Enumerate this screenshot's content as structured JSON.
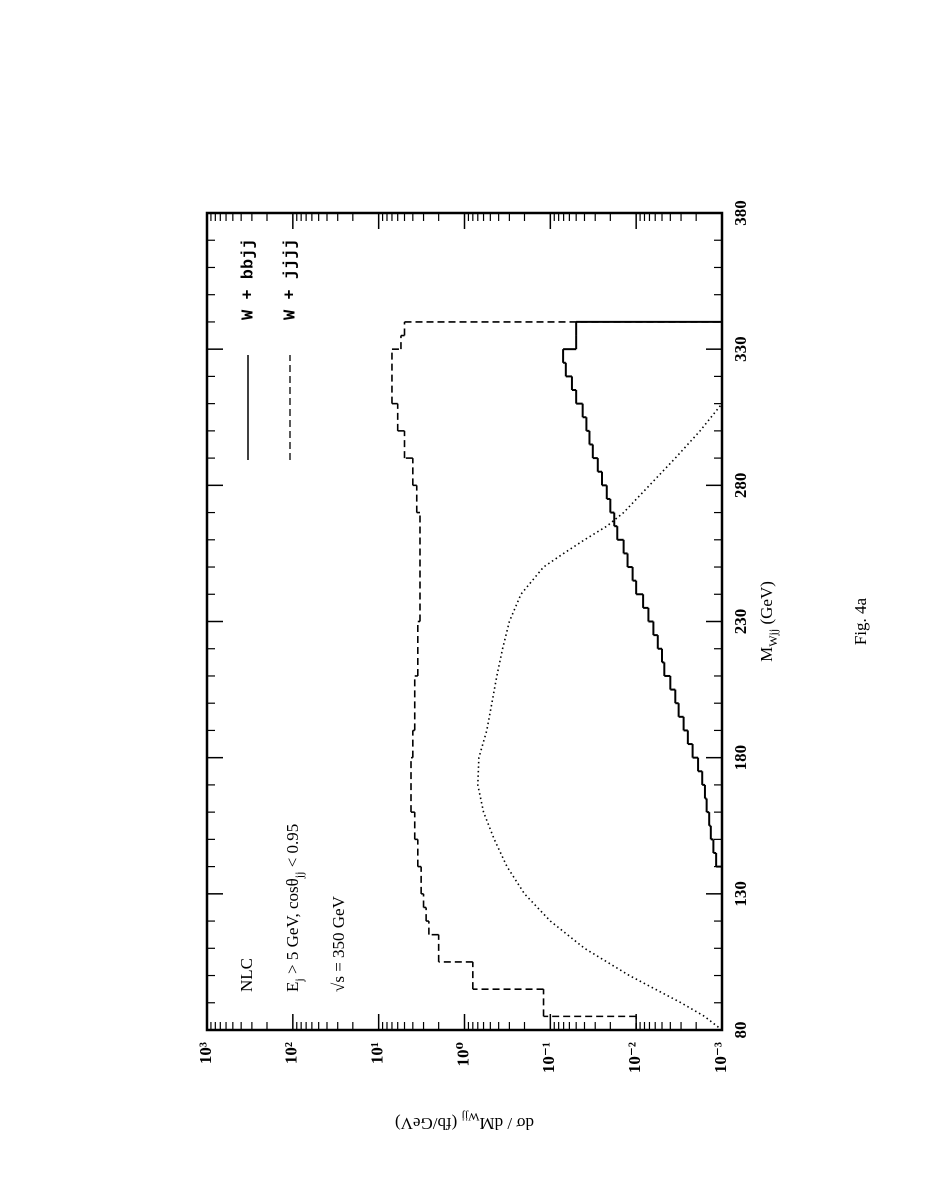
{
  "chart_data": {
    "type": "histogram",
    "caption": "Fig. 4a",
    "x_label": [
      "M",
      "Wjj",
      " (GeV)"
    ],
    "y_label": [
      "dσ / dM",
      "Wjj",
      "  (fb/GeV)"
    ],
    "annotations": [
      [
        "NLC"
      ],
      [
        "E",
        "j",
        " > 5 GeV,  cosθ",
        "jj",
        " < 0.95"
      ],
      [
        "√s = 350 GeV"
      ]
    ],
    "xlim": [
      80,
      380
    ],
    "xticks": [
      80,
      130,
      180,
      230,
      280,
      330,
      380
    ],
    "xminorticks": [
      90,
      100,
      110,
      120,
      140,
      150,
      160,
      170,
      190,
      200,
      210,
      220,
      240,
      250,
      260,
      270,
      290,
      300,
      310,
      320,
      340,
      350,
      360,
      370
    ],
    "ylim": [
      0.001,
      1000
    ],
    "log_y": true,
    "yticks": [
      {
        "value": 0.001,
        "label": "10⁻³"
      },
      {
        "value": 0.01,
        "label": "10⁻²"
      },
      {
        "value": 0.1,
        "label": "10⁻¹"
      },
      {
        "value": 1,
        "label": "10⁰"
      },
      {
        "value": 10,
        "label": "10¹"
      },
      {
        "value": 100,
        "label": "10²"
      },
      {
        "value": 1000,
        "label": "10³"
      }
    ],
    "yminorticks": [
      0.002,
      0.003,
      0.004,
      0.005,
      0.006,
      0.007,
      0.008,
      0.009,
      0.02,
      0.03,
      0.04,
      0.05,
      0.06,
      0.07,
      0.08,
      0.09,
      0.2,
      0.3,
      0.4,
      0.5,
      0.6,
      0.7,
      0.8,
      0.9,
      2,
      3,
      4,
      5,
      6,
      7,
      8,
      9,
      20,
      30,
      40,
      50,
      60,
      70,
      80,
      90,
      200,
      300,
      400,
      500,
      600,
      700,
      800,
      900
    ],
    "legend": "top-right",
    "series": [
      {
        "name": "W + bbjj",
        "color": "#000000",
        "style": "solid",
        "bins": [
          140,
          145,
          150,
          155,
          160,
          165,
          170,
          175,
          180,
          185,
          190,
          195,
          200,
          205,
          210,
          215,
          220,
          225,
          230,
          235,
          240,
          245,
          250,
          255,
          260,
          265,
          270,
          275,
          280,
          285,
          290,
          295,
          300,
          305,
          310,
          315,
          320,
          325,
          330,
          335,
          340
        ],
        "values": [
          0.00117,
          0.00126,
          0.00135,
          0.00141,
          0.00151,
          0.00158,
          0.0017,
          0.0019,
          0.0022,
          0.0025,
          0.0028,
          0.0032,
          0.0035,
          0.004,
          0.0047,
          0.005,
          0.0056,
          0.0063,
          0.0072,
          0.0083,
          0.01,
          0.011,
          0.0126,
          0.014,
          0.0166,
          0.018,
          0.02,
          0.022,
          0.025,
          0.028,
          0.032,
          0.035,
          0.038,
          0.042,
          0.05,
          0.056,
          0.066,
          0.071,
          0.05,
          0.05
        ]
      },
      {
        "name": "W + jjjj",
        "color": "#000000",
        "style": "dashed",
        "bins": [
          80,
          85,
          95,
          105,
          115,
          120,
          125,
          130,
          140,
          150,
          160,
          180,
          190,
          210,
          230,
          270,
          280,
          290,
          300,
          310,
          330,
          335,
          340
        ],
        "values": [
          0.01,
          0.12,
          0.8,
          2.0,
          2.6,
          2.8,
          3.0,
          3.2,
          3.5,
          3.8,
          4.2,
          4.0,
          3.8,
          3.5,
          3.3,
          3.6,
          4.0,
          5.0,
          6.0,
          7.0,
          5.5,
          5.0
        ]
      },
      {
        "color": "#000000",
        "style": "dotted",
        "x": [
          80,
          85,
          90,
          100,
          110,
          120,
          130,
          140,
          150,
          160,
          170,
          180,
          190,
          200,
          210,
          220,
          230,
          240,
          250,
          255,
          260,
          265,
          270,
          280,
          290,
          300,
          310
        ],
        "values": [
          0.001,
          0.0016,
          0.003,
          0.012,
          0.04,
          0.1,
          0.2,
          0.32,
          0.45,
          0.6,
          0.7,
          0.68,
          0.55,
          0.48,
          0.42,
          0.36,
          0.3,
          0.22,
          0.12,
          0.07,
          0.04,
          0.022,
          0.014,
          0.007,
          0.0035,
          0.0018,
          0.001
        ]
      }
    ]
  }
}
